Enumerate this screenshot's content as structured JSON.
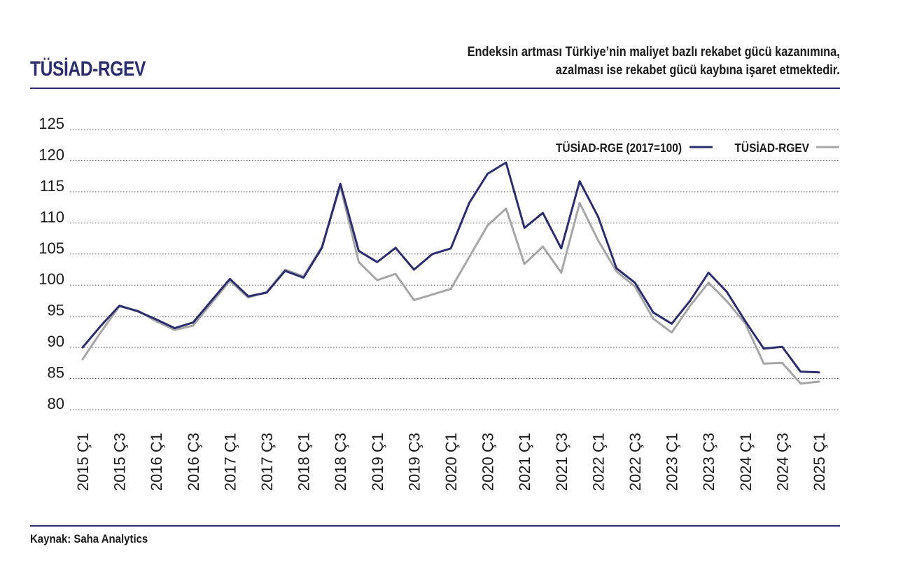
{
  "header": {
    "brand": "TÜSİAD-RGEV",
    "subtitle_line1": "Endeksin artması Türkiye’nin maliyet bazlı rekabet gücü kazanımına,",
    "subtitle_line2": "azalması ise rekabet gücü kaybına işaret etmektedir."
  },
  "footer": {
    "source": "Kaynak: Saha Analytics"
  },
  "chart_data": {
    "type": "line",
    "title": "",
    "xlabel": "",
    "ylabel": "",
    "ylim": [
      80,
      125
    ],
    "yticks": [
      80,
      85,
      90,
      95,
      100,
      105,
      110,
      115,
      120,
      125
    ],
    "grid": true,
    "legend_placement": "top-right",
    "x_tick_labels": [
      "2015 Ç1",
      "2015 Ç3",
      "2016 Ç1",
      "2016 Ç3",
      "2017 Ç1",
      "2017 Ç3",
      "2018 Ç1",
      "2018 Ç3",
      "2019 Ç1",
      "2019 Ç3",
      "2020 Ç1",
      "2020 Ç3",
      "2021 Ç1",
      "2021 Ç3",
      "2022 Ç1",
      "2022 Ç3",
      "2023 Ç1",
      "2023 Ç3",
      "2024 Ç1",
      "2024 Ç3",
      "2025 Ç1"
    ],
    "categories": [
      "2015 Ç1",
      "2015 Ç2",
      "2015 Ç3",
      "2015 Ç4",
      "2016 Ç1",
      "2016 Ç2",
      "2016 Ç3",
      "2016 Ç4",
      "2017 Ç1",
      "2017 Ç2",
      "2017 Ç3",
      "2017 Ç4",
      "2018 Ç1",
      "2018 Ç2",
      "2018 Ç3",
      "2018 Ç4",
      "2019 Ç1",
      "2019 Ç2",
      "2019 Ç3",
      "2019 Ç4",
      "2020 Ç1",
      "2020 Ç2",
      "2020 Ç3",
      "2020 Ç4",
      "2021 Ç1",
      "2021 Ç2",
      "2021 Ç3",
      "2021 Ç4",
      "2022 Ç1",
      "2022 Ç2",
      "2022 Ç3",
      "2022 Ç4",
      "2023 Ç1",
      "2023 Ç2",
      "2023 Ç3",
      "2023 Ç4",
      "2024 Ç1",
      "2024 Ç2",
      "2024 Ç3",
      "2024 Ç4",
      "2025 Ç1",
      "2025 Ç2"
    ],
    "series": [
      {
        "name": "TÜSİAD-RGE (2017=100)",
        "color": "#2b2d6e",
        "values": [
          90.0,
          93.5,
          96.7,
          95.8,
          94.5,
          93.1,
          94.0,
          97.5,
          101.0,
          98.2,
          98.8,
          102.3,
          101.2,
          106.0,
          116.3,
          105.5,
          103.7,
          106.0,
          102.5,
          105.0,
          105.9,
          113.2,
          117.9,
          119.7,
          109.2,
          111.6,
          105.9,
          116.7,
          111.0,
          102.7,
          100.4,
          95.6,
          93.8,
          97.5,
          102.0,
          98.9,
          94.2,
          89.8,
          90.1,
          86.1,
          86.0,
          null
        ]
      },
      {
        "name": "TÜSİAD-RGEV",
        "color": "#a6a6a6",
        "values": [
          88.1,
          92.5,
          96.6,
          95.9,
          94.2,
          92.8,
          93.5,
          97.1,
          100.7,
          98.0,
          98.9,
          102.5,
          101.4,
          106.2,
          115.9,
          103.7,
          100.8,
          101.8,
          97.6,
          98.5,
          99.4,
          104.5,
          109.6,
          112.3,
          103.4,
          106.2,
          102.0,
          113.2,
          107.2,
          102.2,
          99.8,
          94.6,
          92.4,
          96.7,
          100.4,
          97.4,
          93.8,
          87.4,
          87.5,
          84.2,
          84.5,
          null
        ]
      }
    ]
  }
}
